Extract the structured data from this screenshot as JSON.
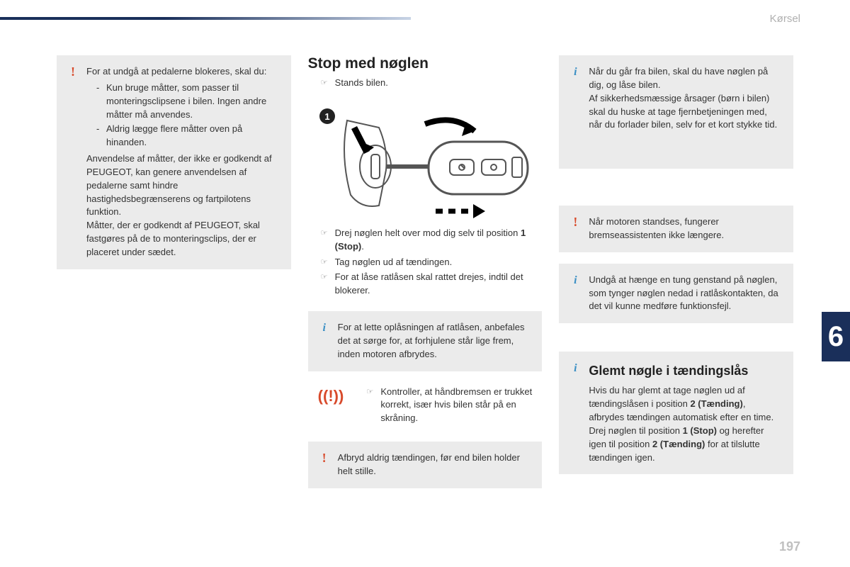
{
  "header": {
    "section": "Kørsel"
  },
  "chapter": "6",
  "page_number": "197",
  "col1": {
    "warning": {
      "intro": "For at undgå at pedalerne blokeres, skal du:",
      "items": [
        "Kun bruge måtter, som passer til monteringsclipsene i bilen. Ingen andre måtter må anvendes.",
        "Aldrig lægge flere måtter oven på hinanden."
      ],
      "para1": "Anvendelse af måtter, der ikke er godkendt af PEUGEOT, kan genere anvendelsen af pedalerne samt hindre hastighedsbegrænserens og fartpilotens funktion.",
      "para2": "Måtter, der er godkendt af PEUGEOT, skal fastgøres på de to monteringsclips, der er placeret under sædet."
    }
  },
  "col2": {
    "title": "Stop med nøglen",
    "steps_pre": [
      "Stands bilen."
    ],
    "steps_post": [
      "Drej nøglen helt over mod dig selv til position <b>1 (Stop)</b>.",
      "Tag nøglen ud af tændingen.",
      "For at låse ratlåsen skal rattet drejes, indtil det blokerer."
    ],
    "info": "For at lette oplåsningen af ratlåsen, anbefales det at sørge for, at forhjulene står lige frem, inden motoren afbrydes.",
    "brake_note": "Kontroller, at håndbremsen er trukket korrekt, især hvis bilen står på en skråning.",
    "warn": "Afbryd aldrig tændingen, før end bilen holder helt stille."
  },
  "col3": {
    "info1": {
      "p1": "Når du går fra bilen, skal du have nøglen på dig, og låse bilen.",
      "p2": "Af sikkerhedsmæssige årsager (børn i bilen) skal du huske at tage fjernbetjeningen med, når du forlader bilen, selv for et kort stykke tid."
    },
    "warn": "Når motoren standses, fungerer bremseassistenten ikke længere.",
    "info2": "Undgå at hænge en tung genstand på nøglen, som tynger nøglen nedad i ratlåskontakten, da det vil kunne medføre funktionsfejl.",
    "forgotten": {
      "title": "Glemt nøgle i tændingslås",
      "body": "Hvis du har glemt at tage nøglen ud af tændingslåsen i position <b>2 (Tænding)</b>, afbrydes tændingen automatisk efter en time.<br>Drej nøglen til position <b>1 (Stop)</b> og herefter igen til position <b>2 (Tænding)</b> for at tilslutte tændingen igen."
    }
  },
  "icons": {
    "brake_symbol": "((!))"
  }
}
